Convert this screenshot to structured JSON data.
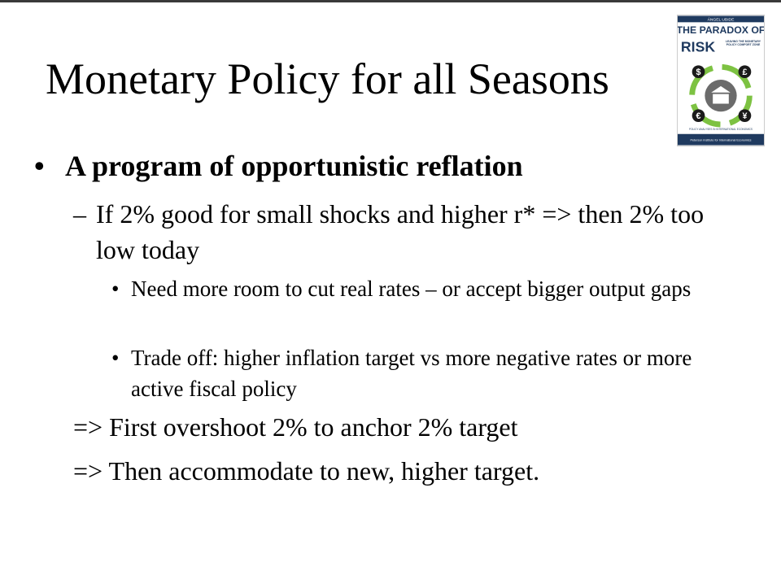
{
  "slide": {
    "title": "Monetary Policy for all Seasons",
    "bullet": "A program of opportunistic reflation",
    "sub_items": [
      {
        "text": "If 2% good for small shocks and higher r* => then 2% too low today",
        "items": [
          "Need more room to cut real rates – or accept bigger output gaps",
          "Trade off: higher inflation target vs more negative rates or more active fiscal policy"
        ]
      }
    ],
    "conclusions": [
      "=> First overshoot 2% to anchor 2% target",
      "=> Then accommodate to new, higher target."
    ]
  },
  "cover": {
    "author": "ÁNGEL UBIDE",
    "title": "THE PARADOX OF",
    "title_2": "RISK",
    "subtitle": "LEAVING THE MONETARY POLICY COMFORT ZONE",
    "symbols": [
      "$",
      "£",
      "€",
      "¥"
    ],
    "series": "POLICY ANALYSES IN INTERNATIONAL ECONOMICS",
    "publisher": "Peterson Institute for International Economics"
  }
}
